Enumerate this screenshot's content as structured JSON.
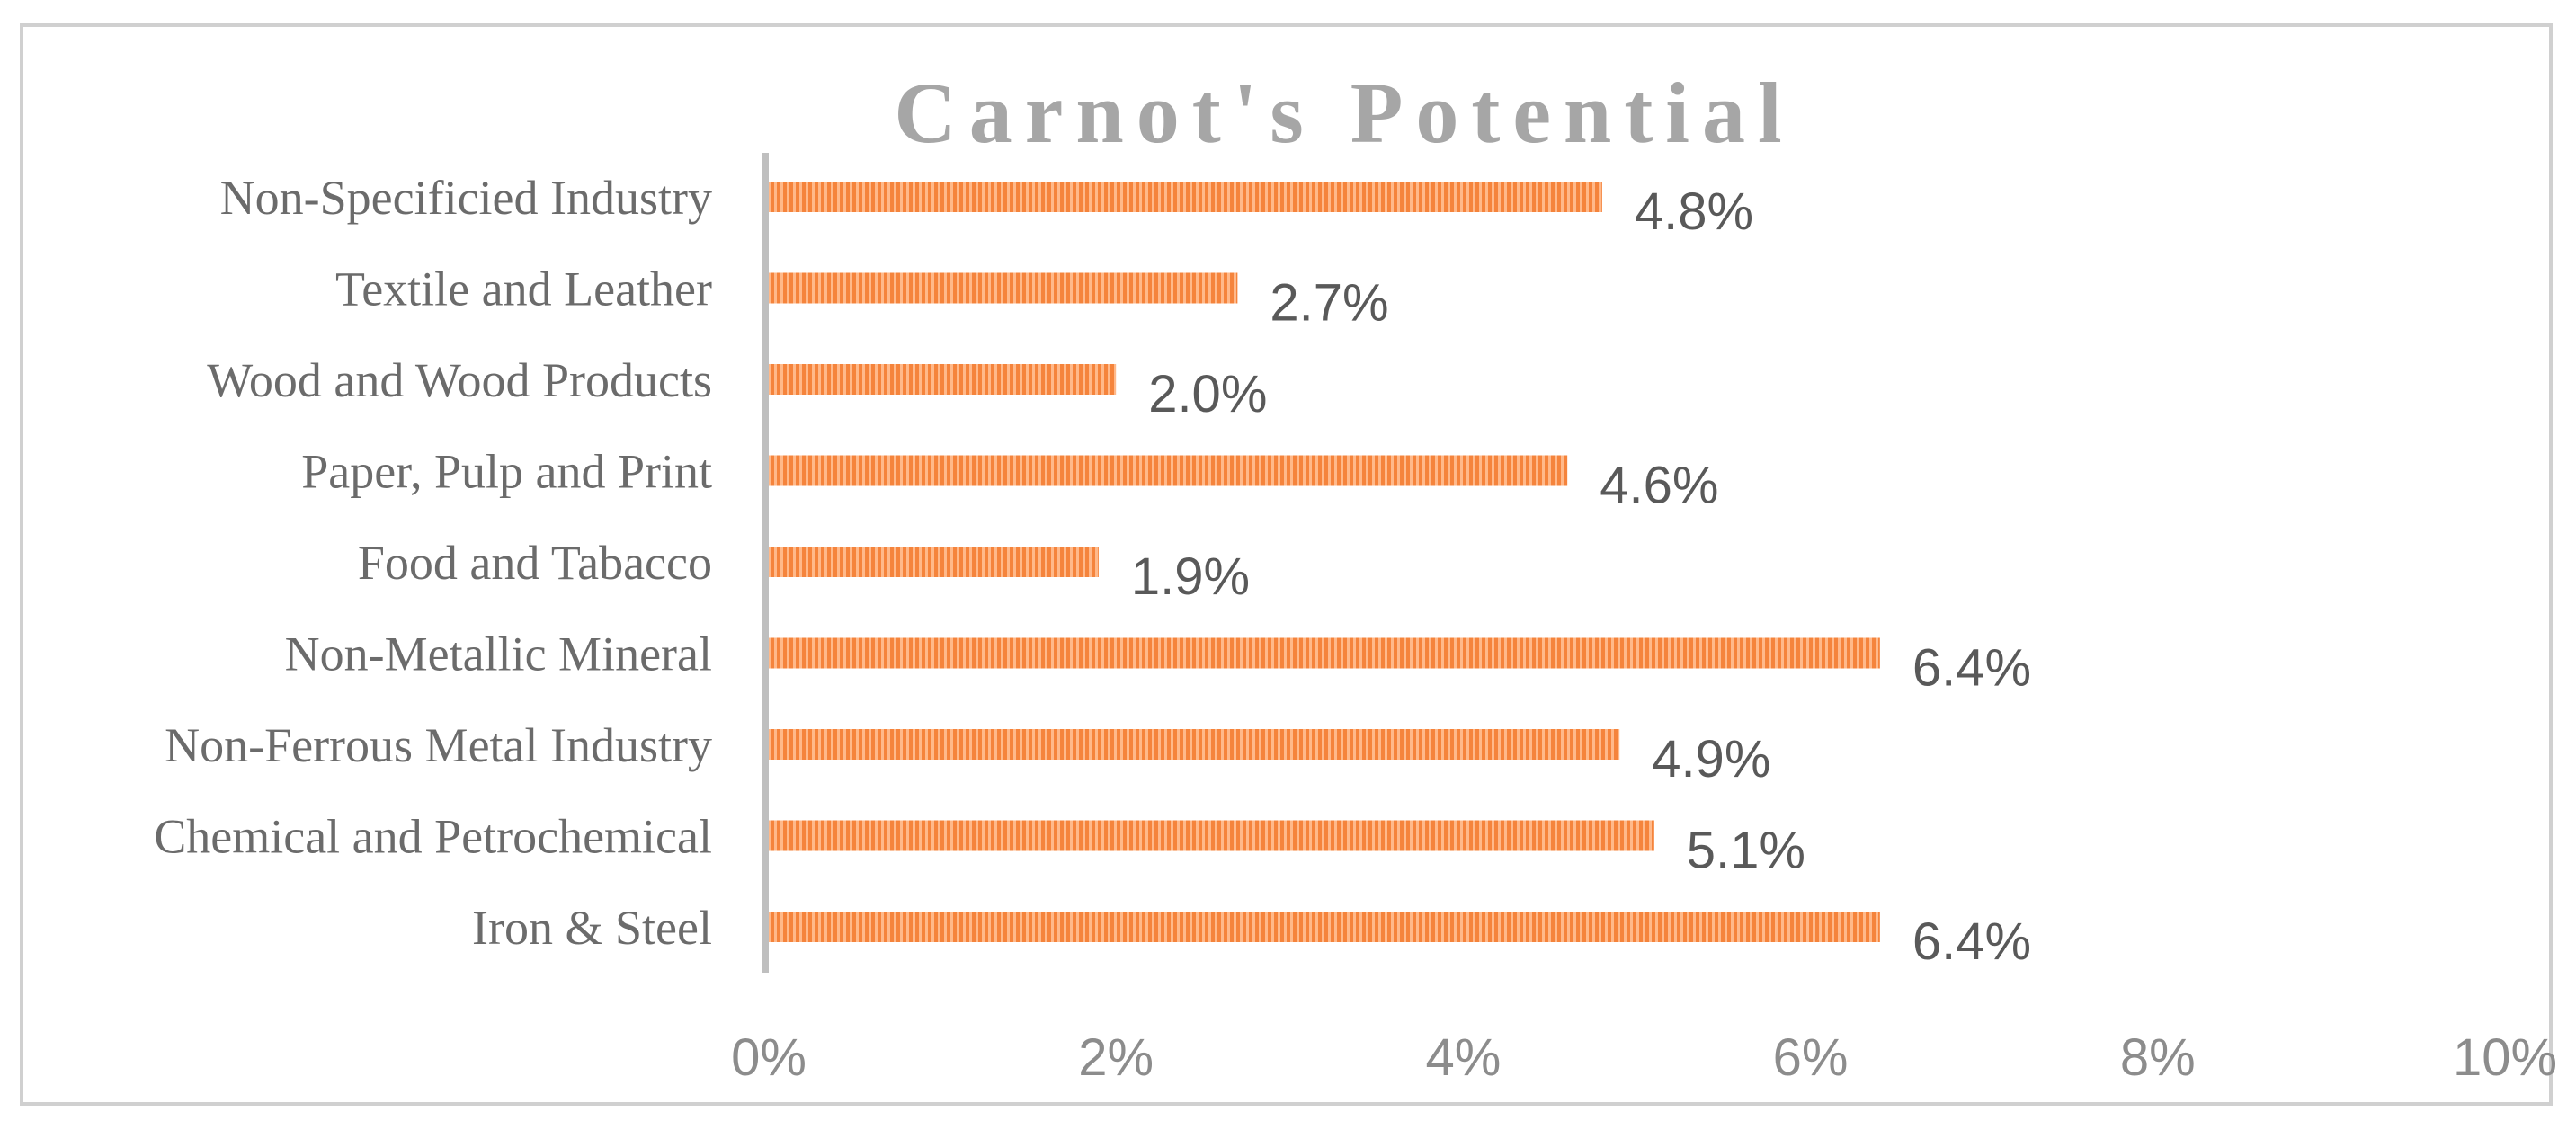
{
  "chart_data": {
    "type": "bar",
    "orientation": "horizontal",
    "title": "Carnot's Potential",
    "xlabel": "",
    "ylabel": "",
    "categories": [
      "Non-Specificied Industry",
      "Textile and Leather",
      "Wood and Wood Products",
      "Paper, Pulp and Print",
      "Food and Tabacco",
      "Non-Metallic Mineral",
      "Non-Ferrous Metal Industry",
      "Chemical and Petrochemical",
      "Iron & Steel"
    ],
    "values": [
      4.8,
      2.7,
      2.0,
      4.6,
      1.9,
      6.4,
      4.9,
      5.1,
      6.4
    ],
    "value_labels": [
      "4.8%",
      "2.7%",
      "2.0%",
      "4.6%",
      "1.9%",
      "6.4%",
      "4.9%",
      "5.1%",
      "6.4%"
    ],
    "xlim": [
      0,
      10
    ],
    "x_ticks": [
      0,
      2,
      4,
      6,
      8,
      10
    ],
    "x_tick_labels": [
      "0%",
      "2%",
      "4%",
      "6%",
      "8%",
      "10%"
    ],
    "grid": false,
    "legend": "none",
    "bar_color": "#f5843c",
    "bar_stripe_color": "#ffb98a"
  }
}
